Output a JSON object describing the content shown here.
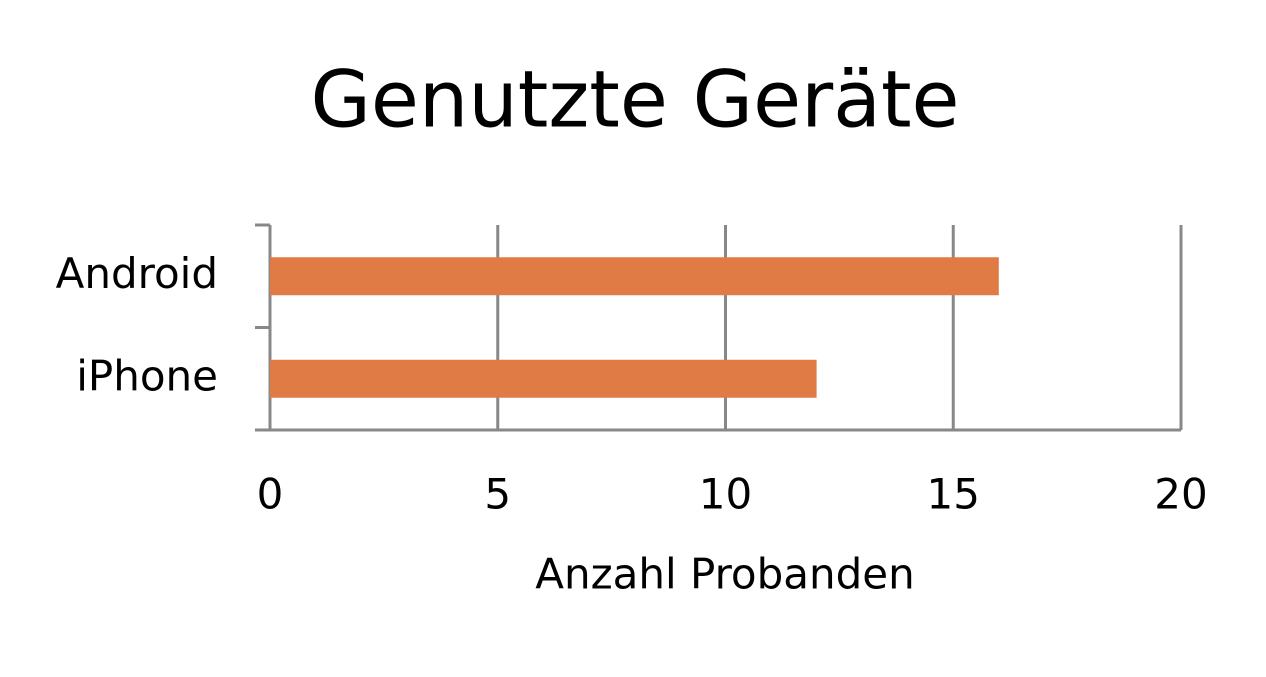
{
  "chart_data": {
    "type": "barh",
    "title": "Genutzte Geräte",
    "categories": [
      "Android",
      "iPhone"
    ],
    "values": [
      16,
      12
    ],
    "color": "#e07b45",
    "xlabel": "Anzahl Probanden",
    "xlim": [
      0,
      20
    ],
    "xticks": [
      0,
      5,
      10,
      15,
      20
    ],
    "grid": true
  }
}
